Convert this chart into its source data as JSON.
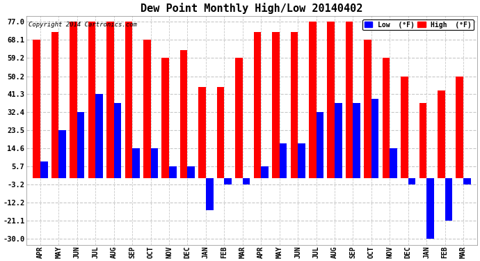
{
  "title": "Dew Point Monthly High/Low 20140402",
  "copyright": "Copyright 2014 Cartronics.com",
  "months": [
    "APR",
    "MAY",
    "JUN",
    "JUL",
    "AUG",
    "SEP",
    "OCT",
    "NOV",
    "DEC",
    "JAN",
    "FEB",
    "MAR",
    "APR",
    "MAY",
    "JUN",
    "JUL",
    "AUG",
    "SEP",
    "OCT",
    "NOV",
    "DEC",
    "JAN",
    "FEB",
    "MAR"
  ],
  "high_values": [
    68.1,
    72.0,
    77.0,
    77.0,
    77.0,
    77.0,
    68.1,
    59.2,
    63.0,
    45.0,
    45.0,
    59.2,
    72.0,
    72.0,
    72.0,
    77.0,
    77.0,
    77.0,
    68.1,
    59.2,
    50.2,
    37.0,
    43.0,
    50.2
  ],
  "low_values": [
    8.0,
    23.5,
    32.4,
    41.3,
    37.0,
    14.6,
    14.6,
    5.7,
    5.7,
    -16.0,
    -3.2,
    -3.2,
    5.7,
    17.0,
    17.0,
    32.4,
    37.0,
    37.0,
    39.2,
    14.6,
    -3.2,
    -30.0,
    -21.1,
    -3.2
  ],
  "high_color": "#FF0000",
  "low_color": "#0000FF",
  "bg_color": "#FFFFFF",
  "grid_color": "#C8C8C8",
  "yticks": [
    77.0,
    68.1,
    59.2,
    50.2,
    41.3,
    32.4,
    23.5,
    14.6,
    5.7,
    -3.2,
    -12.2,
    -21.1,
    -30.0
  ],
  "ylim": [
    -33,
    80
  ],
  "bar_width": 0.4,
  "title_fontsize": 11,
  "legend_labels": [
    "Low  (°F)",
    "High  (°F)"
  ]
}
